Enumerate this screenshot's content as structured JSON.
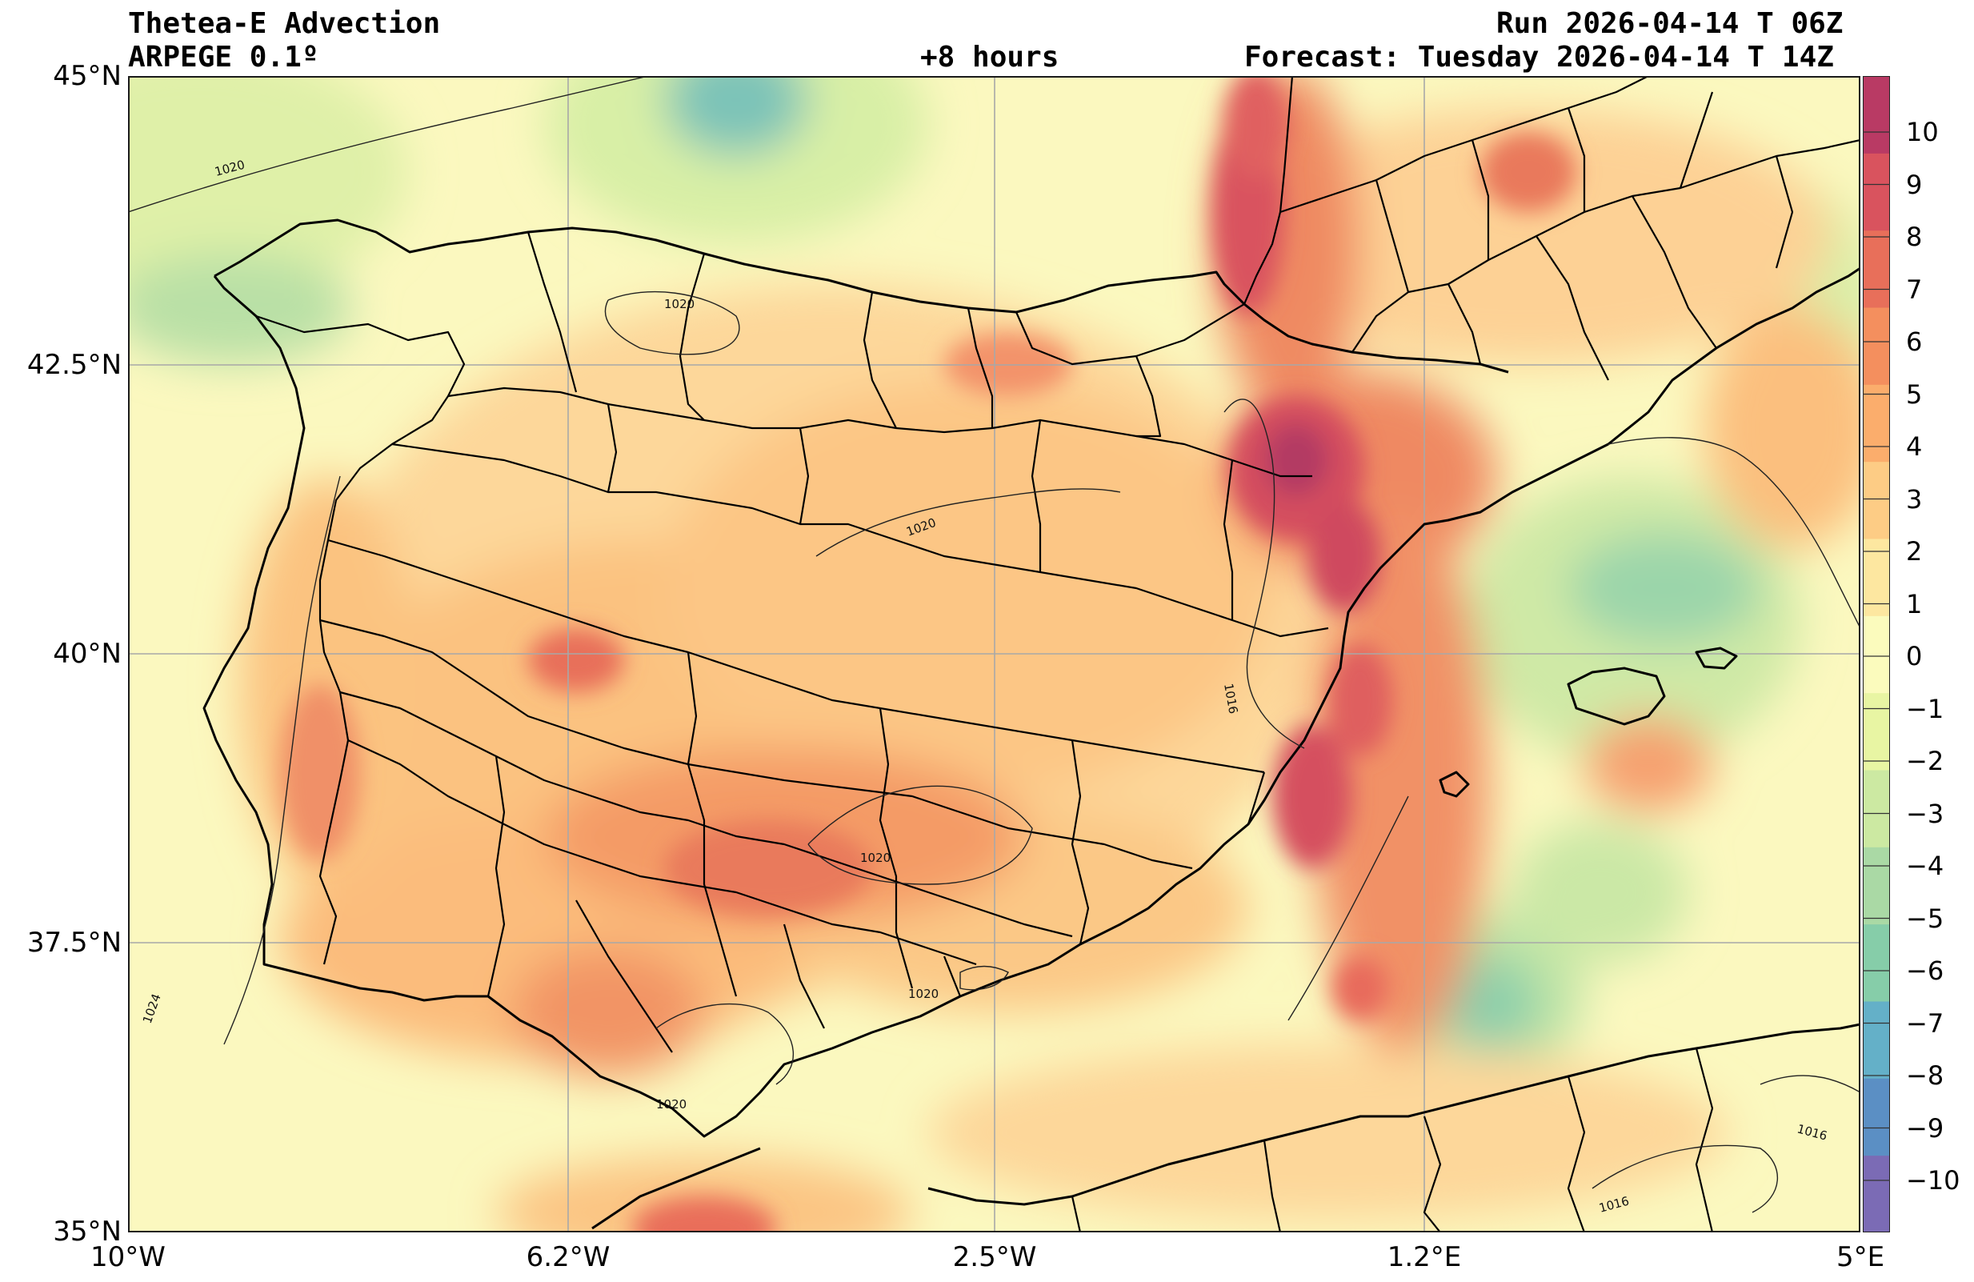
{
  "header": {
    "title": "Thetea-E Advection",
    "model": "ARPEGE 0.1º",
    "lead": "+8 hours",
    "run": "Run 2026-04-14 T 06Z",
    "forecast": "Forecast: Tuesday 2026-04-14 T 14Z"
  },
  "map": {
    "lon_range": [
      -10,
      5
    ],
    "lat_range": [
      35,
      45
    ],
    "lat_labels": [
      "45°N",
      "42.5°N",
      "40°N",
      "37.5°N",
      "35°N"
    ],
    "lon_labels": [
      "10°W",
      "6.2°W",
      "2.5°W",
      "1.2°E",
      "5°E"
    ],
    "gridlines": true,
    "isobar_labels": [
      "1020",
      "1020",
      "1020",
      "1016",
      "1020",
      "1020",
      "1020",
      "1024",
      "1016",
      "1016"
    ]
  },
  "colorbar": {
    "ticks": [
      "10",
      "9",
      "8",
      "7",
      "6",
      "5",
      "4",
      "3",
      "2",
      "1",
      "0",
      "−1",
      "−2",
      "−3",
      "−4",
      "−5",
      "−6",
      "−7",
      "−8",
      "−9",
      "−10"
    ],
    "colors": [
      "#7b6bb5",
      "#5b8fc4",
      "#64b0c8",
      "#86cda9",
      "#aad9a5",
      "#cce9a2",
      "#e8f5a3",
      "#fbfbbd",
      "#fde7a0",
      "#fdcc85",
      "#fbad6c",
      "#f48f5e",
      "#e86f5a",
      "#d9535e",
      "#b93a64"
    ]
  },
  "style": {
    "background": "#fbf8bf",
    "border_color": "#1a1a1a",
    "isobar_color": "#222222",
    "grid_color": "#a8a8a8"
  }
}
